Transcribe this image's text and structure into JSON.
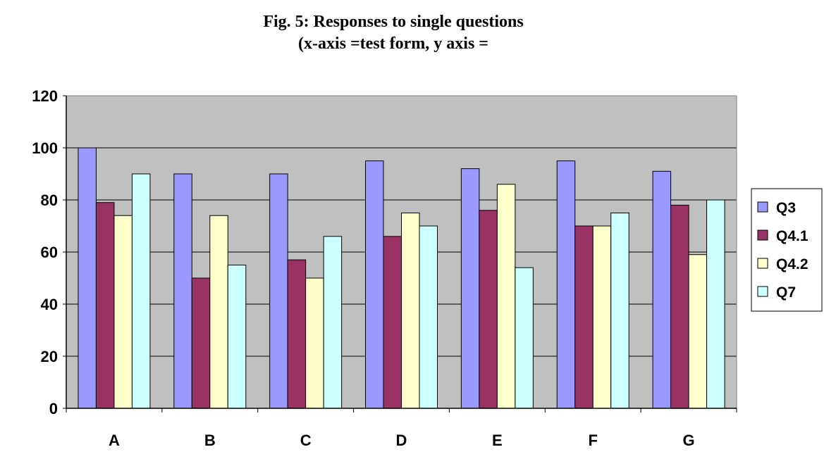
{
  "chart_data": {
    "type": "bar",
    "title": "Fig. 5: Responses to single questions",
    "subtitle": "(x-axis =test form, y axis =",
    "xlabel": "",
    "ylabel": "",
    "ylim": [
      0,
      120
    ],
    "yticks": [
      0,
      20,
      40,
      60,
      80,
      100,
      120
    ],
    "grid": true,
    "legend_position": "right",
    "plot_background": "#c0c0c0",
    "categories": [
      "A",
      "B",
      "C",
      "D",
      "E",
      "F",
      "G"
    ],
    "series": [
      {
        "name": "Q3",
        "color": "#9999ff",
        "values": [
          100,
          90,
          90,
          95,
          92,
          95,
          91
        ]
      },
      {
        "name": "Q4.1",
        "color": "#993366",
        "values": [
          79,
          50,
          57,
          66,
          76,
          70,
          78
        ]
      },
      {
        "name": "Q4.2",
        "color": "#ffffcc",
        "values": [
          74,
          74,
          50,
          75,
          86,
          70,
          59
        ]
      },
      {
        "name": "Q7",
        "color": "#ccffff",
        "values": [
          90,
          55,
          66,
          70,
          54,
          75,
          80
        ]
      }
    ]
  }
}
